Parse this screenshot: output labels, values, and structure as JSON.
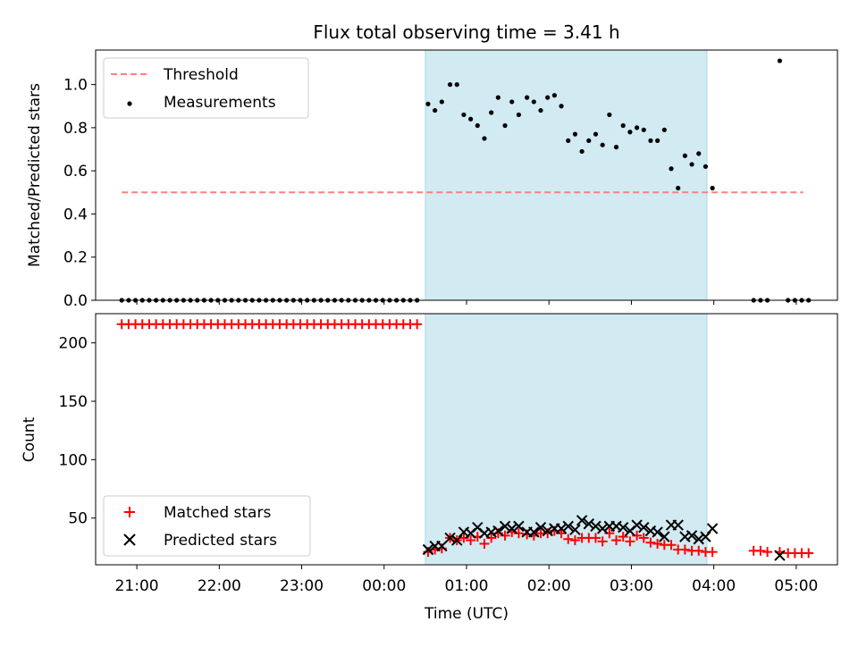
{
  "chart_data": [
    {
      "type": "scatter",
      "title": "Flux total observing time = 3.41 h",
      "xlabel": "",
      "ylabel": "Matched/Predicted stars",
      "ylim": [
        0,
        1.16
      ],
      "yticks": [
        "0.0",
        "0.2",
        "0.4",
        "0.6",
        "0.8",
        "1.0"
      ],
      "xlim_hours": [
        20.5,
        29.5
      ],
      "x_axis_labels_hidden": true,
      "shaded_span": {
        "start": "00:30",
        "end": "03:55",
        "color": "#add8e6"
      },
      "grid": false,
      "legend_location": "upper left",
      "legend": [
        "Threshold",
        "Measurements"
      ],
      "threshold": {
        "name": "Threshold",
        "y": 0.5,
        "x_start": "20:49",
        "x_end": "05:05",
        "color": "#ff7f7f",
        "style": "dashed"
      },
      "series": [
        {
          "name": "Measurements",
          "marker": "dot",
          "color": "#000000",
          "points": [
            [
              "20:49",
              0
            ],
            [
              "20:54",
              0
            ],
            [
              "20:59",
              0
            ],
            [
              "21:04",
              0
            ],
            [
              "21:09",
              0
            ],
            [
              "21:14",
              0
            ],
            [
              "21:19",
              0
            ],
            [
              "21:24",
              0
            ],
            [
              "21:29",
              0
            ],
            [
              "21:34",
              0
            ],
            [
              "21:39",
              0
            ],
            [
              "21:44",
              0
            ],
            [
              "21:49",
              0
            ],
            [
              "21:54",
              0
            ],
            [
              "21:59",
              0
            ],
            [
              "22:04",
              0
            ],
            [
              "22:09",
              0
            ],
            [
              "22:14",
              0
            ],
            [
              "22:19",
              0
            ],
            [
              "22:24",
              0
            ],
            [
              "22:29",
              0
            ],
            [
              "22:34",
              0
            ],
            [
              "22:39",
              0
            ],
            [
              "22:44",
              0
            ],
            [
              "22:49",
              0
            ],
            [
              "22:54",
              0
            ],
            [
              "22:59",
              0
            ],
            [
              "23:04",
              0
            ],
            [
              "23:09",
              0
            ],
            [
              "23:14",
              0
            ],
            [
              "23:19",
              0
            ],
            [
              "23:24",
              0
            ],
            [
              "23:29",
              0
            ],
            [
              "23:34",
              0
            ],
            [
              "23:39",
              0
            ],
            [
              "23:44",
              0
            ],
            [
              "23:49",
              0
            ],
            [
              "23:54",
              0
            ],
            [
              "23:59",
              0
            ],
            [
              "00:04",
              0
            ],
            [
              "00:09",
              0
            ],
            [
              "00:14",
              0
            ],
            [
              "00:19",
              0
            ],
            [
              "00:24",
              0
            ],
            [
              "00:32",
              0.91
            ],
            [
              "00:37",
              0.88
            ],
            [
              "00:42",
              0.92
            ],
            [
              "00:48",
              1.0
            ],
            [
              "00:53",
              1.0
            ],
            [
              "00:58",
              0.86
            ],
            [
              "01:03",
              0.84
            ],
            [
              "01:08",
              0.81
            ],
            [
              "01:13",
              0.75
            ],
            [
              "01:18",
              0.87
            ],
            [
              "01:23",
              0.94
            ],
            [
              "01:28",
              0.81
            ],
            [
              "01:33",
              0.92
            ],
            [
              "01:38",
              0.86
            ],
            [
              "01:44",
              0.94
            ],
            [
              "01:49",
              0.92
            ],
            [
              "01:54",
              0.88
            ],
            [
              "01:59",
              0.94
            ],
            [
              "02:04",
              0.95
            ],
            [
              "02:09",
              0.9
            ],
            [
              "02:14",
              0.74
            ],
            [
              "02:19",
              0.77
            ],
            [
              "02:24",
              0.69
            ],
            [
              "02:29",
              0.74
            ],
            [
              "02:34",
              0.77
            ],
            [
              "02:39",
              0.72
            ],
            [
              "02:44",
              0.86
            ],
            [
              "02:49",
              0.71
            ],
            [
              "02:54",
              0.81
            ],
            [
              "02:59",
              0.78
            ],
            [
              "03:04",
              0.8
            ],
            [
              "03:09",
              0.79
            ],
            [
              "03:14",
              0.74
            ],
            [
              "03:19",
              0.74
            ],
            [
              "03:24",
              0.79
            ],
            [
              "03:29",
              0.61
            ],
            [
              "03:34",
              0.52
            ],
            [
              "03:39",
              0.67
            ],
            [
              "03:44",
              0.63
            ],
            [
              "03:49",
              0.68
            ],
            [
              "03:54",
              0.62
            ],
            [
              "03:59",
              0.52
            ],
            [
              "04:29",
              0
            ],
            [
              "04:34",
              0
            ],
            [
              "04:39",
              0
            ],
            [
              "04:48",
              1.11
            ],
            [
              "04:54",
              0
            ],
            [
              "04:59",
              0
            ],
            [
              "05:04",
              0
            ],
            [
              "05:09",
              0
            ]
          ]
        }
      ]
    },
    {
      "type": "scatter",
      "title": "",
      "xlabel": "Time (UTC)",
      "ylabel": "Count",
      "ylim": [
        10,
        225
      ],
      "yticks": [
        "50",
        "100",
        "150",
        "200"
      ],
      "xlim_hours": [
        20.5,
        29.5
      ],
      "xticks": [
        "21:00",
        "22:00",
        "23:00",
        "00:00",
        "01:00",
        "02:00",
        "03:00",
        "04:00",
        "05:00"
      ],
      "shaded_span": {
        "start": "00:30",
        "end": "03:55",
        "color": "#add8e6"
      },
      "grid": false,
      "legend_location": "lower left",
      "legend": [
        "Matched stars",
        "Predicted stars"
      ],
      "series": [
        {
          "name": "Matched stars",
          "marker": "plus",
          "color": "#ff0000",
          "points": [
            [
              "20:49",
              216
            ],
            [
              "20:54",
              216
            ],
            [
              "20:59",
              216
            ],
            [
              "21:04",
              216
            ],
            [
              "21:09",
              216
            ],
            [
              "21:14",
              216
            ],
            [
              "21:19",
              216
            ],
            [
              "21:24",
              216
            ],
            [
              "21:29",
              216
            ],
            [
              "21:34",
              216
            ],
            [
              "21:39",
              216
            ],
            [
              "21:44",
              216
            ],
            [
              "21:49",
              216
            ],
            [
              "21:54",
              216
            ],
            [
              "21:59",
              216
            ],
            [
              "22:04",
              216
            ],
            [
              "22:09",
              216
            ],
            [
              "22:14",
              216
            ],
            [
              "22:19",
              216
            ],
            [
              "22:24",
              216
            ],
            [
              "22:29",
              216
            ],
            [
              "22:34",
              216
            ],
            [
              "22:39",
              216
            ],
            [
              "22:44",
              216
            ],
            [
              "22:49",
              216
            ],
            [
              "22:54",
              216
            ],
            [
              "22:59",
              216
            ],
            [
              "23:04",
              216
            ],
            [
              "23:09",
              216
            ],
            [
              "23:14",
              216
            ],
            [
              "23:19",
              216
            ],
            [
              "23:24",
              216
            ],
            [
              "23:29",
              216
            ],
            [
              "23:34",
              216
            ],
            [
              "23:39",
              216
            ],
            [
              "23:44",
              216
            ],
            [
              "23:49",
              216
            ],
            [
              "23:54",
              216
            ],
            [
              "23:59",
              216
            ],
            [
              "00:04",
              216
            ],
            [
              "00:09",
              216
            ],
            [
              "00:14",
              216
            ],
            [
              "00:19",
              216
            ],
            [
              "00:24",
              216
            ],
            [
              "00:32",
              21
            ],
            [
              "00:37",
              23
            ],
            [
              "00:42",
              24
            ],
            [
              "00:48",
              33
            ],
            [
              "00:53",
              31
            ],
            [
              "00:58",
              33
            ],
            [
              "01:03",
              31
            ],
            [
              "01:08",
              34
            ],
            [
              "01:13",
              28
            ],
            [
              "01:18",
              33
            ],
            [
              "01:23",
              37
            ],
            [
              "01:28",
              35
            ],
            [
              "01:33",
              38
            ],
            [
              "01:38",
              37
            ],
            [
              "01:44",
              36
            ],
            [
              "01:49",
              35
            ],
            [
              "01:54",
              37
            ],
            [
              "01:59",
              37
            ],
            [
              "02:04",
              39
            ],
            [
              "02:09",
              37
            ],
            [
              "02:14",
              32
            ],
            [
              "02:19",
              31
            ],
            [
              "02:24",
              33
            ],
            [
              "02:29",
              33
            ],
            [
              "02:34",
              33
            ],
            [
              "02:39",
              30
            ],
            [
              "02:44",
              37
            ],
            [
              "02:49",
              31
            ],
            [
              "02:54",
              34
            ],
            [
              "02:59",
              30
            ],
            [
              "03:04",
              35
            ],
            [
              "03:09",
              33
            ],
            [
              "03:14",
              29
            ],
            [
              "03:19",
              28
            ],
            [
              "03:24",
              27
            ],
            [
              "03:29",
              27
            ],
            [
              "03:34",
              23
            ],
            [
              "03:39",
              23
            ],
            [
              "03:44",
              22
            ],
            [
              "03:49",
              22
            ],
            [
              "03:54",
              21
            ],
            [
              "03:59",
              21
            ],
            [
              "04:29",
              22
            ],
            [
              "04:34",
              22
            ],
            [
              "04:39",
              21
            ],
            [
              "04:48",
              21
            ],
            [
              "04:54",
              20
            ],
            [
              "04:59",
              20
            ],
            [
              "05:04",
              20
            ],
            [
              "05:09",
              20
            ]
          ]
        },
        {
          "name": "Predicted stars",
          "marker": "x",
          "color": "#000000",
          "points": [
            [
              "00:32",
              23
            ],
            [
              "00:37",
              26
            ],
            [
              "00:42",
              26
            ],
            [
              "00:48",
              33
            ],
            [
              "00:53",
              31
            ],
            [
              "00:58",
              38
            ],
            [
              "01:03",
              37
            ],
            [
              "01:08",
              42
            ],
            [
              "01:13",
              37
            ],
            [
              "01:18",
              38
            ],
            [
              "01:23",
              39
            ],
            [
              "01:28",
              43
            ],
            [
              "01:33",
              41
            ],
            [
              "01:38",
              43
            ],
            [
              "01:44",
              38
            ],
            [
              "01:49",
              38
            ],
            [
              "01:54",
              42
            ],
            [
              "01:59",
              39
            ],
            [
              "02:04",
              41
            ],
            [
              "02:09",
              41
            ],
            [
              "02:14",
              43
            ],
            [
              "02:19",
              40
            ],
            [
              "02:24",
              48
            ],
            [
              "02:29",
              45
            ],
            [
              "02:34",
              43
            ],
            [
              "02:39",
              41
            ],
            [
              "02:44",
              43
            ],
            [
              "02:49",
              43
            ],
            [
              "02:54",
              42
            ],
            [
              "02:59",
              39
            ],
            [
              "03:04",
              44
            ],
            [
              "03:09",
              42
            ],
            [
              "03:14",
              39
            ],
            [
              "03:19",
              38
            ],
            [
              "03:24",
              34
            ],
            [
              "03:29",
              44
            ],
            [
              "03:34",
              44
            ],
            [
              "03:39",
              34
            ],
            [
              "03:44",
              35
            ],
            [
              "03:49",
              32
            ],
            [
              "03:54",
              34
            ],
            [
              "03:59",
              41
            ],
            [
              "04:48",
              18
            ]
          ]
        }
      ]
    }
  ]
}
